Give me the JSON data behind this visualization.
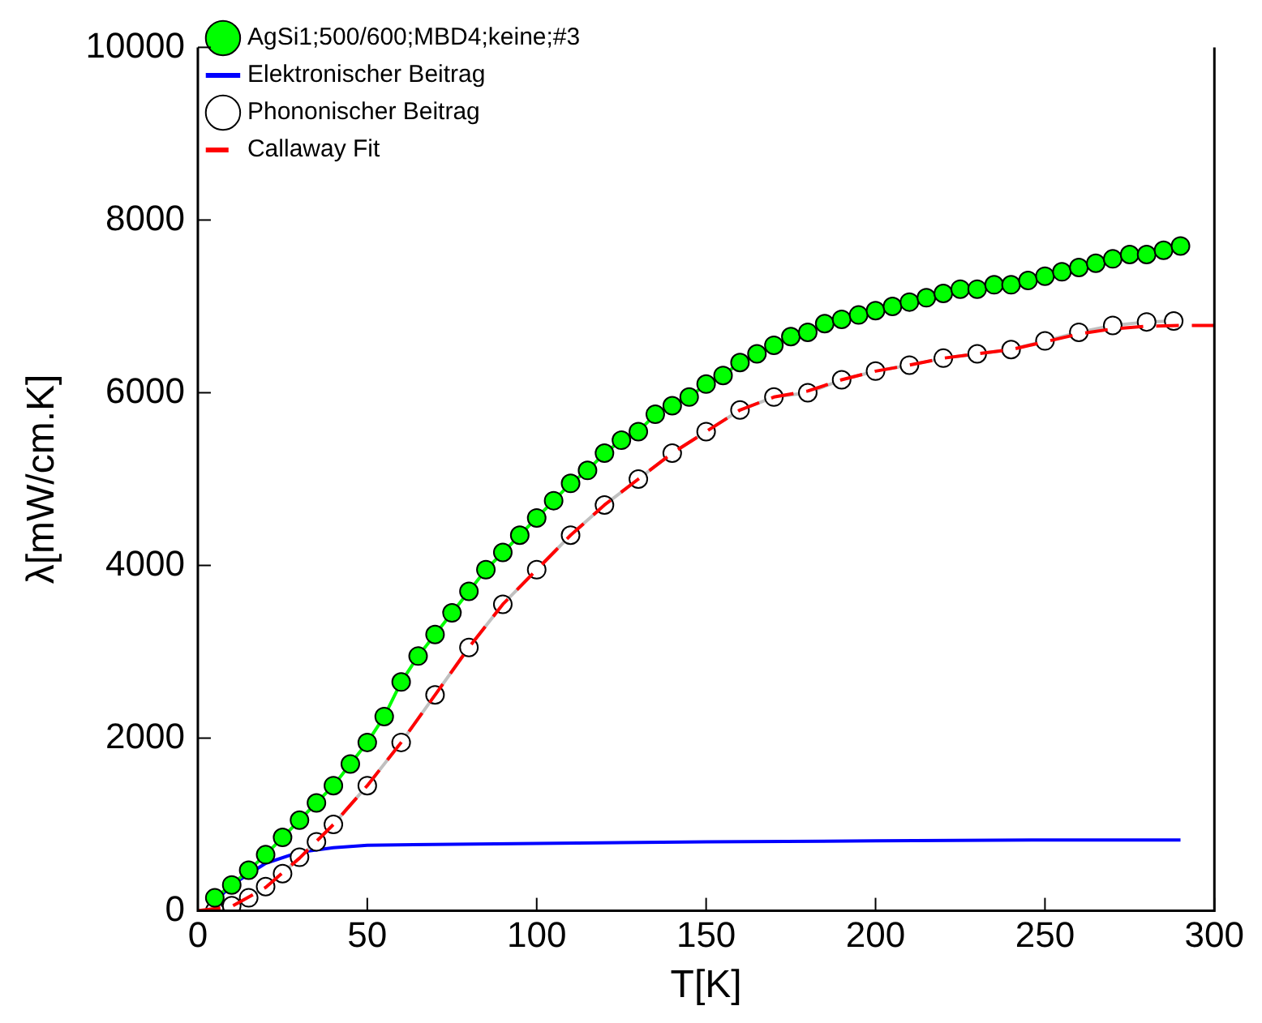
{
  "chart_data": {
    "type": "line",
    "xlabel": "T[K]",
    "ylabel": "λ[mW/cm.K]",
    "xlim": [
      0,
      300
    ],
    "ylim": [
      0,
      10000
    ],
    "xticks": [
      0,
      50,
      100,
      150,
      200,
      250,
      300
    ],
    "yticks": [
      0,
      2000,
      4000,
      6000,
      8000,
      10000
    ],
    "grid": false,
    "legend": "top left",
    "series": [
      {
        "name": "AgSi1;500/600;MBD4;keine;#3",
        "color": "#00ff00",
        "marker": "circle",
        "line_style": "solid",
        "x": [
          5,
          10,
          15,
          20,
          25,
          30,
          35,
          40,
          45,
          50,
          55,
          60,
          65,
          70,
          75,
          80,
          85,
          90,
          95,
          100,
          105,
          110,
          115,
          120,
          125,
          130,
          135,
          140,
          145,
          150,
          155,
          160,
          165,
          170,
          175,
          180,
          185,
          190,
          195,
          200,
          205,
          210,
          215,
          220,
          225,
          230,
          235,
          240,
          245,
          250,
          255,
          260,
          265,
          270,
          275,
          280,
          285,
          290
        ],
        "values": [
          150,
          300,
          470,
          650,
          850,
          1050,
          1250,
          1450,
          1700,
          1950,
          2250,
          2650,
          2950,
          3200,
          3450,
          3700,
          3950,
          4150,
          4350,
          4550,
          4750,
          4950,
          5100,
          5300,
          5450,
          5550,
          5750,
          5850,
          5950,
          6100,
          6200,
          6350,
          6450,
          6550,
          6650,
          6700,
          6800,
          6850,
          6900,
          6950,
          7000,
          7050,
          7100,
          7150,
          7200,
          7200,
          7250,
          7250,
          7300,
          7350,
          7400,
          7450,
          7500,
          7550,
          7600,
          7600,
          7650,
          7700
        ]
      },
      {
        "name": "Elektronischer Beitrag",
        "color": "#0000ff",
        "marker": "none",
        "line_style": "solid",
        "x": [
          5,
          10,
          20,
          30,
          40,
          50,
          100,
          150,
          200,
          250,
          290
        ],
        "values": [
          100,
          300,
          550,
          680,
          730,
          760,
          780,
          800,
          810,
          820,
          820
        ]
      },
      {
        "name": "Phononischer Beitrag",
        "color": "#c0c0c0",
        "marker": "circle",
        "line_style": "solid",
        "x": [
          5,
          10,
          15,
          20,
          25,
          30,
          35,
          40,
          50,
          60,
          70,
          80,
          90,
          100,
          110,
          120,
          130,
          140,
          150,
          160,
          170,
          180,
          190,
          200,
          210,
          220,
          230,
          240,
          250,
          260,
          270,
          280,
          288
        ],
        "values": [
          0,
          60,
          150,
          280,
          430,
          620,
          800,
          1000,
          1450,
          1950,
          2500,
          3050,
          3550,
          3950,
          4350,
          4700,
          5000,
          5300,
          5550,
          5800,
          5950,
          6000,
          6150,
          6250,
          6320,
          6400,
          6450,
          6500,
          6600,
          6700,
          6780,
          6820,
          6830
        ]
      },
      {
        "name": "Callaway Fit",
        "color": "#ff0000",
        "marker": "none",
        "line_style": "dashed",
        "x": [
          0,
          10,
          20,
          30,
          40,
          50,
          60,
          70,
          80,
          90,
          100,
          110,
          120,
          130,
          140,
          150,
          160,
          170,
          180,
          190,
          200,
          210,
          220,
          230,
          240,
          250,
          260,
          270,
          280,
          290,
          300
        ],
        "values": [
          0,
          50,
          270,
          610,
          1000,
          1450,
          1950,
          2500,
          3050,
          3550,
          3950,
          4350,
          4700,
          5000,
          5300,
          5550,
          5800,
          5950,
          6020,
          6150,
          6250,
          6320,
          6400,
          6450,
          6500,
          6590,
          6680,
          6740,
          6770,
          6780,
          6780
        ]
      }
    ]
  }
}
